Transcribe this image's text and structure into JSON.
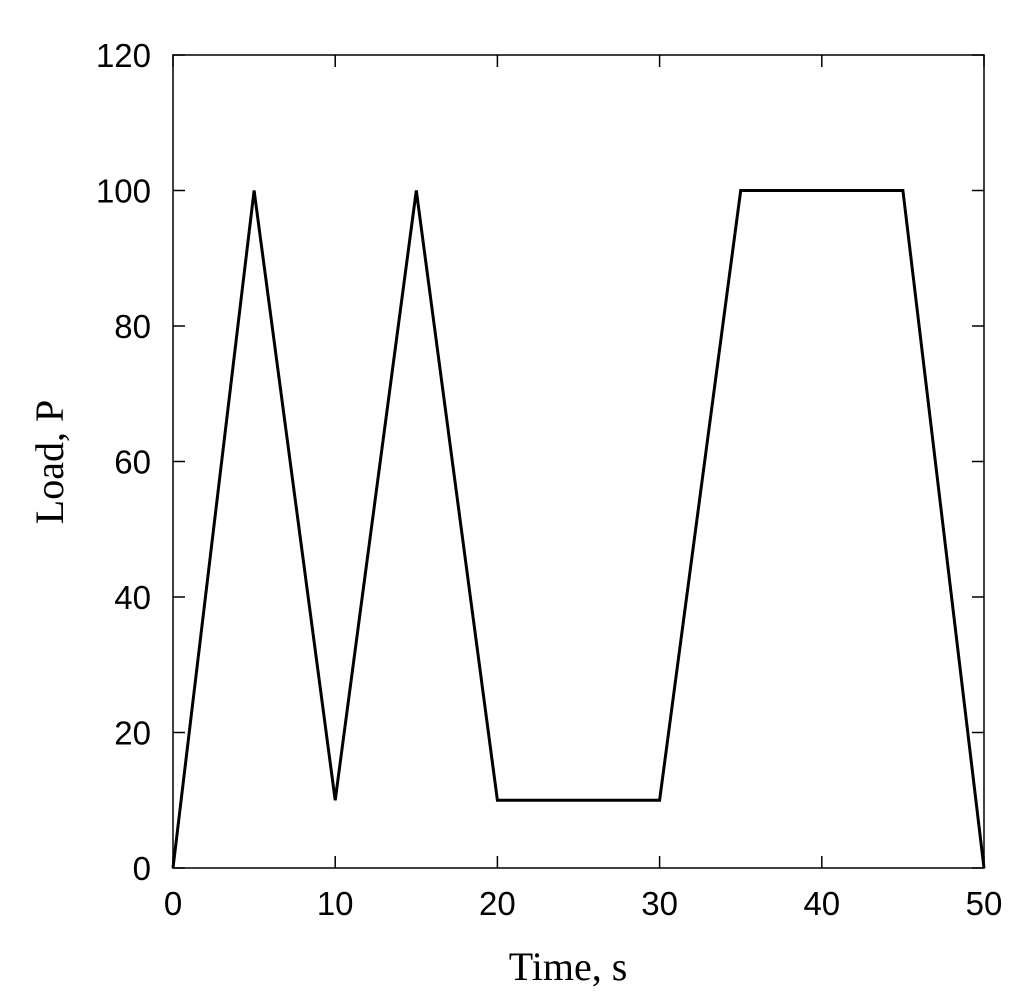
{
  "chart_data": {
    "type": "line",
    "title": "",
    "xlabel": "Time, s",
    "ylabel": "Load, P",
    "xlim": [
      0,
      50
    ],
    "ylim": [
      0,
      120
    ],
    "xticks": [
      0,
      10,
      20,
      30,
      40,
      50
    ],
    "yticks": [
      0,
      20,
      40,
      60,
      80,
      100,
      120
    ],
    "grid": false,
    "series": [
      {
        "color": "#000000",
        "x": [
          0,
          5,
          10,
          15,
          20,
          30,
          35,
          45,
          50
        ],
        "y": [
          0,
          100,
          10,
          100,
          10,
          10,
          100,
          100,
          0
        ]
      }
    ]
  }
}
